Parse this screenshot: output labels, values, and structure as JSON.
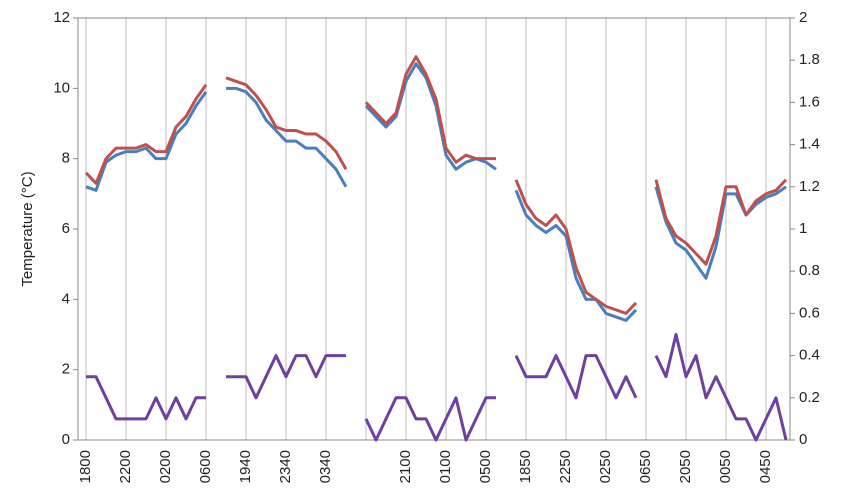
{
  "chart_data": {
    "type": "line",
    "y_label": "Temperature  (°C)",
    "categories": [
      "1800",
      null,
      null,
      null,
      "2200",
      null,
      null,
      null,
      "0200",
      null,
      null,
      null,
      "0600",
      null,
      null,
      null,
      "1940",
      null,
      null,
      null,
      "2340",
      null,
      null,
      null,
      "0340",
      null,
      null,
      null,
      null,
      null,
      null,
      null,
      "2100",
      null,
      null,
      null,
      "0100",
      null,
      null,
      null,
      "0500",
      null,
      null,
      null,
      "1850",
      null,
      null,
      null,
      "2250",
      null,
      null,
      null,
      "0250",
      null,
      null,
      null,
      "0650",
      null,
      null,
      null,
      "2050",
      null,
      null,
      null,
      "0050",
      null,
      null,
      null,
      "0450",
      null,
      null
    ],
    "ylim": [
      0,
      12
    ],
    "yticks": [
      0,
      2,
      4,
      6,
      8,
      10,
      12
    ],
    "y2lim": [
      0,
      2
    ],
    "y2ticks": [
      0,
      0.2,
      0.4,
      0.6,
      0.8,
      1,
      1.2,
      1.4,
      1.6,
      1.8,
      2
    ],
    "grid": true,
    "series": [
      {
        "color": "#4a7ebf",
        "values": [
          7.2,
          7.1,
          7.9,
          8.1,
          8.2,
          8.2,
          8.3,
          8.0,
          8.0,
          8.7,
          9.0,
          9.5,
          9.9,
          null,
          10.0,
          10.0,
          9.9,
          9.6,
          9.1,
          8.8,
          8.5,
          8.5,
          8.3,
          8.3,
          8.0,
          7.7,
          7.2,
          null,
          9.5,
          9.2,
          8.9,
          9.2,
          10.2,
          10.7,
          10.3,
          9.5,
          8.1,
          7.7,
          7.9,
          8.0,
          7.9,
          7.7,
          null,
          7.1,
          6.4,
          6.1,
          5.9,
          6.1,
          5.8,
          4.6,
          4.0,
          4.0,
          3.6,
          3.5,
          3.4,
          3.7,
          null,
          7.2,
          6.2,
          5.6,
          5.4,
          5.0,
          4.6,
          5.5,
          7.0,
          7.0,
          6.4,
          6.7,
          6.9,
          7.0,
          7.2
        ]
      },
      {
        "color": "#c0504d",
        "values": [
          7.6,
          7.3,
          8.0,
          8.3,
          8.3,
          8.3,
          8.4,
          8.2,
          8.2,
          8.9,
          9.2,
          9.7,
          10.1,
          null,
          10.3,
          10.2,
          10.1,
          9.8,
          9.4,
          8.9,
          8.8,
          8.8,
          8.7,
          8.7,
          8.5,
          8.2,
          7.7,
          null,
          9.6,
          9.3,
          9.0,
          9.3,
          10.4,
          10.9,
          10.4,
          9.7,
          8.3,
          7.9,
          8.1,
          8.0,
          8.0,
          8.0,
          null,
          7.4,
          6.7,
          6.3,
          6.1,
          6.4,
          6.0,
          4.9,
          4.2,
          4.0,
          3.8,
          3.7,
          3.6,
          3.9,
          null,
          7.4,
          6.3,
          5.8,
          5.6,
          5.3,
          5.0,
          5.8,
          7.2,
          7.2,
          6.4,
          6.8,
          7.0,
          7.1,
          7.4
        ]
      },
      {
        "color": "#7040a0",
        "axis": "y2",
        "values": [
          0.3,
          0.3,
          0.2,
          0.1,
          0.1,
          0.1,
          0.1,
          0.2,
          0.1,
          0.2,
          0.1,
          0.2,
          0.2,
          null,
          0.3,
          0.3,
          0.3,
          0.2,
          0.3,
          0.4,
          0.3,
          0.4,
          0.4,
          0.3,
          0.4,
          0.4,
          0.4,
          null,
          0.1,
          0,
          0.1,
          0.2,
          0.2,
          0.1,
          0.1,
          0,
          0.1,
          0.2,
          0,
          0.1,
          0.2,
          0.2,
          null,
          0.4,
          0.3,
          0.3,
          0.3,
          0.4,
          0.3,
          0.2,
          0.4,
          0.4,
          0.3,
          0.2,
          0.3,
          0.2,
          null,
          0.4,
          0.3,
          0.5,
          0.3,
          0.4,
          0.2,
          0.3,
          0.2,
          0.1,
          0.1,
          0,
          0.1,
          0.2,
          0
        ]
      }
    ]
  }
}
